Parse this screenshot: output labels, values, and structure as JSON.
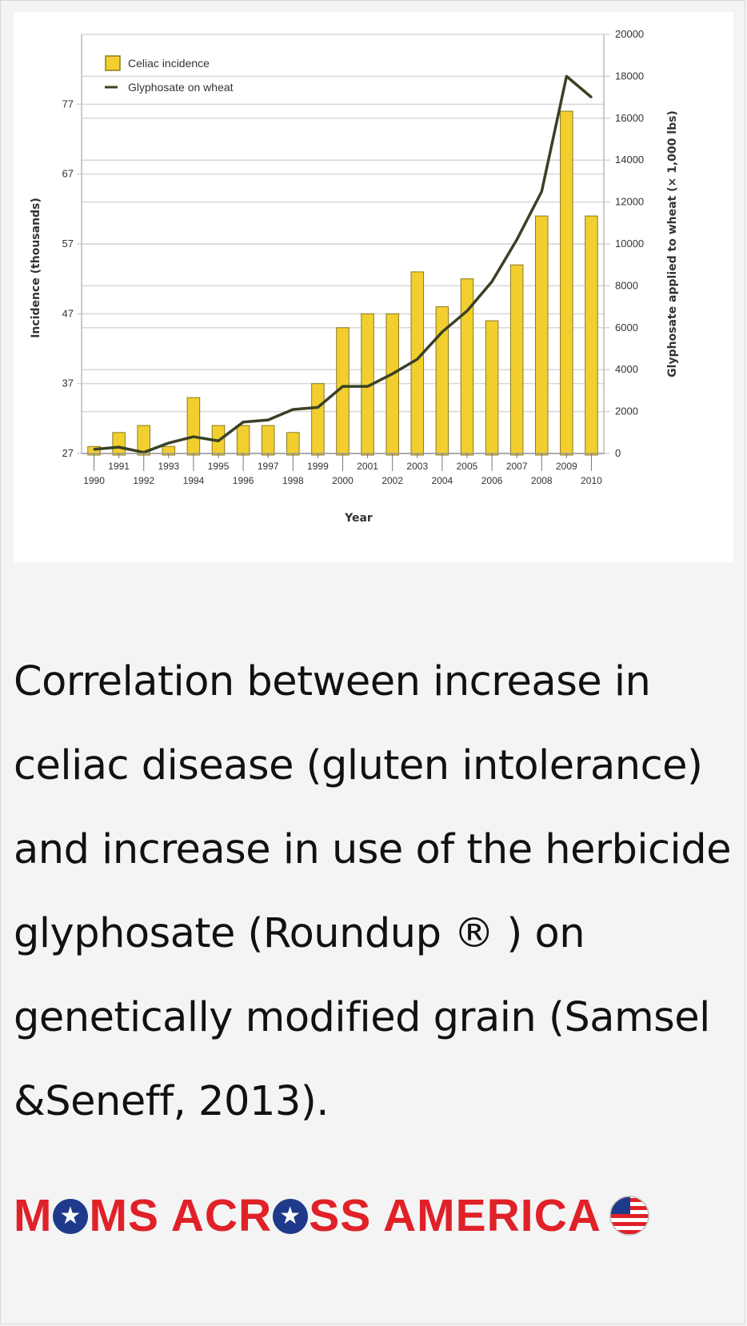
{
  "chart_data": {
    "type": "bar",
    "x": [
      1990,
      1991,
      1992,
      1993,
      1994,
      1995,
      1996,
      1997,
      1998,
      1999,
      2000,
      2001,
      2002,
      2003,
      2004,
      2005,
      2006,
      2007,
      2008,
      2009,
      2010
    ],
    "x_tick_labels_top": [
      "1991",
      "1993",
      "1995",
      "1997",
      "1999",
      "2001",
      "2003",
      "2005",
      "2007",
      "2009"
    ],
    "x_tick_labels_bottom": [
      "1990",
      "1992",
      "1994",
      "1996",
      "1998",
      "2000",
      "2002",
      "2004",
      "2006",
      "2008",
      "2010"
    ],
    "series": [
      {
        "name": "Celiac incidence",
        "type": "bar",
        "axis": "left",
        "color": "#f2cf2f",
        "values": [
          28,
          30,
          31,
          28,
          35,
          31,
          31,
          31,
          30,
          37,
          45,
          47,
          47,
          53,
          48,
          52,
          46,
          54,
          61,
          76,
          61
        ]
      },
      {
        "name": "Glyphosate on wheat",
        "type": "line",
        "axis": "right",
        "color": "#3a4126",
        "values": [
          200,
          300,
          50,
          500,
          800,
          600,
          1500,
          1600,
          2100,
          2200,
          3200,
          3200,
          3800,
          4500,
          5800,
          6800,
          8200,
          10200,
          12500,
          18000,
          17000
        ]
      }
    ],
    "ylabel_left": "Incidence (thousands)",
    "ylabel_right": "Glyphosate applied to wheat (× 1,000 lbs)",
    "xlabel": "Year",
    "yticks_left": [
      27,
      37,
      47,
      57,
      67,
      77
    ],
    "yticks_right": [
      0,
      2000,
      4000,
      6000,
      8000,
      10000,
      12000,
      14000,
      16000,
      18000,
      20000
    ],
    "ylim_left": [
      27,
      87
    ],
    "ylim_right": [
      0,
      20000
    ],
    "grid": true,
    "legend": "top-left"
  },
  "caption": {
    "lines": [
      "Correlation between increase in",
      "celiac disease (gluten intolerance)",
      "and increase in use of the herbicide",
      "glyphosate (Roundup ® ) on",
      "genetically modified grain (Samsel",
      "&Seneff, 2013)."
    ]
  },
  "brand": {
    "parts": [
      "M",
      "MS ACR",
      "SS AMERICA"
    ],
    "text": "MOMS ACROSS AMERICA",
    "icon": "flag-icon",
    "red": "#e02128",
    "blue": "#1f3a8a"
  }
}
